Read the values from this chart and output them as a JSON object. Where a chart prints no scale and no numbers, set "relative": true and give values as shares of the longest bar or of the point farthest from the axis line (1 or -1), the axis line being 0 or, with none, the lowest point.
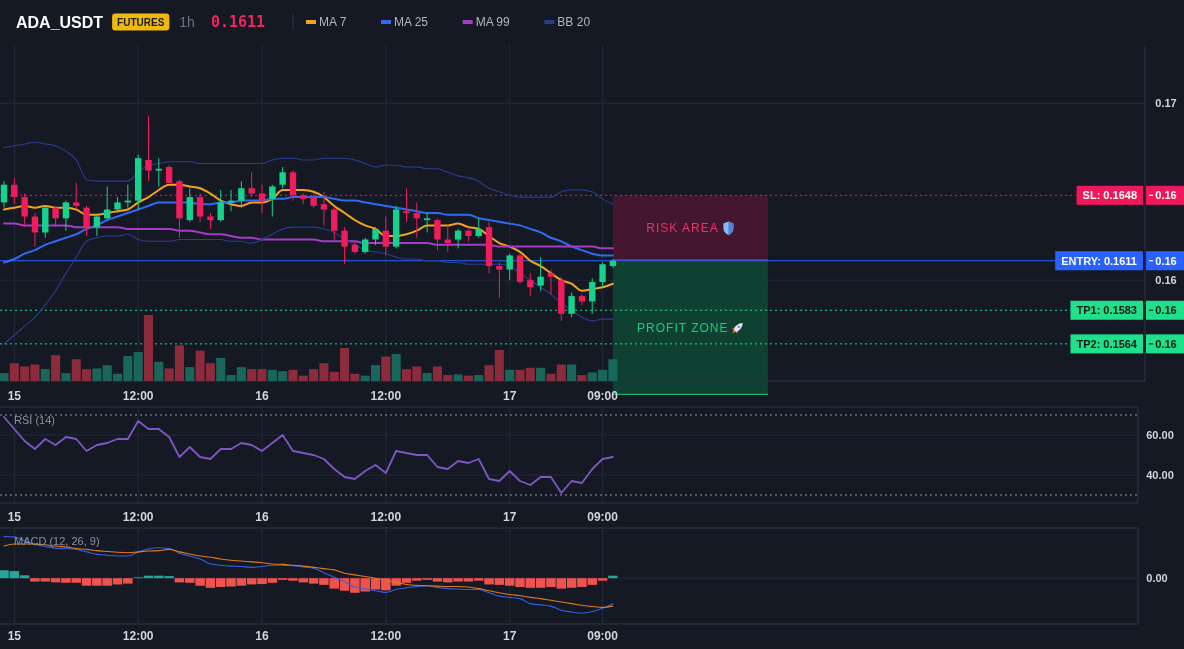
{
  "chart_data": [
    {
      "type": "candlestick",
      "title": "ADA_USDT",
      "annotations": [
        "FUTURES",
        "1h",
        "0.1611",
        "RISK AREA",
        "PROFIT ZONE"
      ],
      "categories": [
        null,
        "15",
        null,
        null,
        null,
        null,
        null,
        null,
        null,
        null,
        null,
        null,
        null,
        "12:00",
        null,
        null,
        null,
        null,
        null,
        null,
        null,
        null,
        null,
        null,
        null,
        "16",
        null,
        null,
        null,
        null,
        null,
        null,
        null,
        null,
        null,
        null,
        null,
        "12:00",
        null,
        null,
        null,
        null,
        null,
        null,
        null,
        null,
        null,
        null,
        null,
        "17",
        null,
        null,
        null,
        null,
        null,
        null,
        null,
        null,
        "09:00",
        null
      ],
      "ohlc": [
        [
          0.1644,
          0.1656,
          0.1641,
          0.1654
        ],
        [
          0.1654,
          0.1658,
          0.1643,
          0.1647
        ],
        [
          0.1647,
          0.1649,
          0.163,
          0.1636
        ],
        [
          0.1636,
          0.1638,
          0.1619,
          0.1627
        ],
        [
          0.1627,
          0.1642,
          0.1624,
          0.1641
        ],
        [
          0.1641,
          0.1642,
          0.163,
          0.1635
        ],
        [
          0.1635,
          0.1645,
          0.1628,
          0.1644
        ],
        [
          0.1644,
          0.1655,
          0.164,
          0.1642
        ],
        [
          0.1641,
          0.1642,
          0.1625,
          0.163
        ],
        [
          0.163,
          0.1637,
          0.1625,
          0.1636
        ],
        [
          0.1635,
          0.1653,
          0.1634,
          0.164
        ],
        [
          0.164,
          0.1647,
          0.1638,
          0.1644
        ],
        [
          0.1644,
          0.1654,
          0.1641,
          0.1645
        ],
        [
          0.1645,
          0.1671,
          0.164,
          0.1669
        ],
        [
          0.1668,
          0.1693,
          0.1656,
          0.1662
        ],
        [
          0.1662,
          0.1669,
          0.1653,
          0.1663
        ],
        [
          0.1664,
          0.1665,
          0.1655,
          0.1655
        ],
        [
          0.1656,
          0.1657,
          0.1624,
          0.1635
        ],
        [
          0.1634,
          0.1652,
          0.1633,
          0.1647
        ],
        [
          0.1647,
          0.1649,
          0.1633,
          0.1636
        ],
        [
          0.1636,
          0.1638,
          0.1629,
          0.1634
        ],
        [
          0.1634,
          0.1651,
          0.1633,
          0.1644
        ],
        [
          0.1644,
          0.1651,
          0.1639,
          0.1645
        ],
        [
          0.1645,
          0.1656,
          0.1641,
          0.1652
        ],
        [
          0.1652,
          0.1661,
          0.1647,
          0.1649
        ],
        [
          0.1649,
          0.1654,
          0.1638,
          0.1645
        ],
        [
          0.1646,
          0.1654,
          0.1636,
          0.1653
        ],
        [
          0.1654,
          0.1664,
          0.1652,
          0.1661
        ],
        [
          0.1661,
          0.1662,
          0.1645,
          0.1648
        ],
        [
          0.1648,
          0.1649,
          0.1643,
          0.1646
        ],
        [
          0.1647,
          0.1649,
          0.1641,
          0.1642
        ],
        [
          0.1643,
          0.165,
          0.1631,
          0.164
        ],
        [
          0.164,
          0.1641,
          0.1623,
          0.1628
        ],
        [
          0.1628,
          0.163,
          0.1609,
          0.1619
        ],
        [
          0.162,
          0.1622,
          0.1615,
          0.1616
        ],
        [
          0.1616,
          0.1624,
          0.1615,
          0.1623
        ],
        [
          0.1623,
          0.163,
          0.162,
          0.1629
        ],
        [
          0.1628,
          0.1636,
          0.1614,
          0.1619
        ],
        [
          0.1619,
          0.1642,
          0.1618,
          0.164
        ],
        [
          0.1639,
          0.1652,
          0.1633,
          0.1638
        ],
        [
          0.1638,
          0.1644,
          0.1624,
          0.1635
        ],
        [
          0.1634,
          0.1638,
          0.1627,
          0.1635
        ],
        [
          0.1634,
          0.1635,
          0.1617,
          0.1623
        ],
        [
          0.1623,
          0.1631,
          0.1616,
          0.1621
        ],
        [
          0.1623,
          0.1629,
          0.1618,
          0.1628
        ],
        [
          0.1628,
          0.1629,
          0.1622,
          0.1625
        ],
        [
          0.1625,
          0.1635,
          0.1624,
          0.1629
        ],
        [
          0.163,
          0.1633,
          0.1604,
          0.1608
        ],
        [
          0.1608,
          0.161,
          0.159,
          0.1606
        ],
        [
          0.1606,
          0.1615,
          0.16,
          0.1614
        ],
        [
          0.1614,
          0.1615,
          0.1598,
          0.1599
        ],
        [
          0.16,
          0.1604,
          0.1591,
          0.1596
        ],
        [
          0.1597,
          0.1613,
          0.1594,
          0.1602
        ],
        [
          0.1604,
          0.1606,
          0.1592,
          0.1602
        ],
        [
          0.16,
          0.1602,
          0.1577,
          0.1581
        ],
        [
          0.1581,
          0.1593,
          0.1579,
          0.1591
        ],
        [
          0.1591,
          0.1592,
          0.1586,
          0.1588
        ],
        [
          0.1588,
          0.1601,
          0.1581,
          0.1599
        ],
        [
          0.1599,
          0.161,
          0.1596,
          0.1609
        ],
        [
          0.1608,
          0.1612,
          0.1607,
          0.1611
        ]
      ],
      "colors": [
        "#15d38c",
        "#f01c5c",
        "#f01c5c",
        "#f01c5c",
        "#15d38c",
        "#f01c5c",
        "#15d38c",
        "#f01c5c",
        "#f01c5c",
        "#15d38c",
        "#15d38c",
        "#15d38c",
        "#15d38c",
        "#15d38c",
        "#f01c5c",
        "#15d38c",
        "#f01c5c",
        "#f01c5c",
        "#15d38c",
        "#f01c5c",
        "#f01c5c",
        "#15d38c",
        "#15d38c",
        "#15d38c",
        "#f01c5c",
        "#f01c5c",
        "#15d38c",
        "#15d38c",
        "#f01c5c",
        "#f01c5c",
        "#f01c5c",
        "#f01c5c",
        "#f01c5c",
        "#f01c5c",
        "#f01c5c",
        "#15d38c",
        "#15d38c",
        "#f01c5c",
        "#15d38c",
        "#f01c5c",
        "#f01c5c",
        "#15d38c",
        "#f01c5c",
        "#f01c5c",
        "#15d38c",
        "#f01c5c",
        "#15d38c",
        "#f01c5c",
        "#f01c5c",
        "#15d38c",
        "#f01c5c",
        "#f01c5c",
        "#15d38c",
        "#f01c5c",
        "#f01c5c",
        "#15d38c",
        "#f01c5c",
        "#15d38c",
        "#15d38c",
        "#15d38c"
      ],
      "series": [
        {
          "name": "MA 7",
          "type": "line",
          "color": "#f5a31a",
          "values": [
            0.164,
            0.1641,
            0.1642,
            0.1641,
            0.1642,
            0.1641,
            0.1641,
            0.164,
            0.1637,
            0.1637,
            0.1638,
            0.1639,
            0.164,
            0.1644,
            0.1647,
            0.1651,
            0.1654,
            0.1654,
            0.1653,
            0.1652,
            0.1649,
            0.1645,
            0.1643,
            0.1642,
            0.1644,
            0.1644,
            0.1646,
            0.1651,
            0.1651,
            0.1651,
            0.165,
            0.1647,
            0.1642,
            0.1638,
            0.1634,
            0.1631,
            0.1629,
            0.1625,
            0.1625,
            0.1626,
            0.1628,
            0.1631,
            0.1631,
            0.1631,
            0.1632,
            0.163,
            0.1629,
            0.1625,
            0.1621,
            0.1619,
            0.1616,
            0.1611,
            0.1608,
            0.1604,
            0.16,
            0.1598,
            0.1594,
            0.1595,
            0.1596,
            0.1598
          ]
        },
        {
          "name": "MA 25",
          "type": "line",
          "color": "#2f6bf0",
          "values": [
            0.161,
            0.1612,
            0.1615,
            0.1617,
            0.162,
            0.1622,
            0.1624,
            0.1626,
            0.1629,
            0.1631,
            0.1634,
            0.1636,
            0.1638,
            0.164,
            0.1642,
            0.1644,
            0.1644,
            0.1644,
            0.1644,
            0.1643,
            0.1643,
            0.1644,
            0.1644,
            0.1645,
            0.1645,
            0.1645,
            0.1646,
            0.1646,
            0.1647,
            0.1647,
            0.1647,
            0.1647,
            0.1646,
            0.1645,
            0.1645,
            0.1644,
            0.1643,
            0.1642,
            0.1641,
            0.164,
            0.1639,
            0.1638,
            0.1638,
            0.1637,
            0.1637,
            0.1637,
            0.1635,
            0.1634,
            0.1633,
            0.1632,
            0.1631,
            0.1629,
            0.1627,
            0.1624,
            0.1622,
            0.1619,
            0.1617,
            0.1615,
            0.1614,
            0.1614
          ]
        },
        {
          "name": "MA 99",
          "type": "line",
          "color": "#a43cc4",
          "values": [
            0.1632,
            0.1632,
            0.1631,
            0.1631,
            0.1631,
            0.1631,
            0.1631,
            0.163,
            0.163,
            0.163,
            0.163,
            0.163,
            0.1629,
            0.1629,
            0.1629,
            0.1629,
            0.1629,
            0.1628,
            0.1628,
            0.1627,
            0.1626,
            0.1626,
            0.1625,
            0.1624,
            0.1624,
            0.1623,
            0.1623,
            0.1623,
            0.1623,
            0.1623,
            0.1623,
            0.1622,
            0.1622,
            0.1622,
            0.1622,
            0.1621,
            0.1621,
            0.1621,
            0.1621,
            0.1621,
            0.1621,
            0.1621,
            0.162,
            0.162,
            0.162,
            0.162,
            0.162,
            0.162,
            0.1619,
            0.1619,
            0.1619,
            0.1619,
            0.1619,
            0.1619,
            0.1619,
            0.1619,
            0.1619,
            0.1619,
            0.1618,
            0.1618
          ]
        },
        {
          "name": "BB 20",
          "type": "line",
          "color": "#2a3d8f",
          "values": [
            0.1675,
            0.1676,
            0.1677,
            0.1678,
            0.1677,
            0.1676,
            0.1673,
            0.1668,
            0.1657,
            0.1656,
            0.1656,
            0.1656,
            0.1656,
            0.1661,
            0.1665,
            0.1666,
            0.1667,
            0.1667,
            0.1667,
            0.1666,
            0.1666,
            0.1666,
            0.1666,
            0.1666,
            0.1666,
            0.1666,
            0.1668,
            0.1669,
            0.1669,
            0.1668,
            0.1668,
            0.1669,
            0.1669,
            0.1669,
            0.1668,
            0.1666,
            0.1664,
            0.1665,
            0.1665,
            0.1664,
            0.1664,
            0.1663,
            0.1663,
            0.1661,
            0.1659,
            0.1658,
            0.1656,
            0.1652,
            0.165,
            0.1648,
            0.1647,
            0.1647,
            0.1647,
            0.1647,
            0.165,
            0.1651,
            0.1651,
            0.165,
            0.1646,
            0.1643
          ]
        },
        {
          "type": "line",
          "color": "#2a3d8f",
          "values": [
            0.1564,
            0.1569,
            0.1574,
            0.1579,
            0.1586,
            0.1594,
            0.1604,
            0.1613,
            0.1622,
            0.1624,
            0.1625,
            0.1625,
            0.1626,
            0.1623,
            0.1622,
            0.1622,
            0.1622,
            0.1623,
            0.1623,
            0.1623,
            0.1623,
            0.1623,
            0.1622,
            0.1622,
            0.1621,
            0.1623,
            0.1626,
            0.1629,
            0.163,
            0.163,
            0.163,
            0.1629,
            0.1627,
            0.1623,
            0.162,
            0.1617,
            0.1616,
            0.1615,
            0.1613,
            0.1612,
            0.1612,
            0.1611,
            0.1611,
            0.161,
            0.161,
            0.1609,
            0.1609,
            0.1609,
            0.1609,
            0.1608,
            0.1604,
            0.16,
            0.1596,
            0.1592,
            0.1587,
            0.1583,
            0.1579,
            0.1577,
            0.1578,
            0.1578
          ]
        }
      ],
      "ylim": [
        0.1543,
        0.1733
      ],
      "yticks": [
        0.17,
        0.16,
        {
          "value": 0.1648,
          "label": "0.16"
        },
        {
          "value": 0.1611,
          "label": "0.16"
        },
        {
          "value": 0.1583,
          "label": "0.16"
        },
        {
          "value": 0.1564,
          "label": "0.16"
        }
      ],
      "ref_lines": [
        {
          "axis": "y",
          "value": 0.1648,
          "label": "SL: 0.1648",
          "color": "#f0185a",
          "line_style": "dotted"
        },
        {
          "axis": "y",
          "value": 0.1611,
          "label": "ENTRY: 0.1611",
          "color": "#2962ff",
          "line_style": "solid"
        },
        {
          "axis": "y",
          "value": 0.1583,
          "label": "TP1: 0.1583",
          "color": "#1fe08b",
          "line_style": "dotted"
        },
        {
          "axis": "y",
          "value": 0.1564,
          "label": "TP2: 0.1564",
          "color": "#1fe08b",
          "line_style": "dotted"
        }
      ],
      "grid": true,
      "legend": "top right"
    },
    {
      "type": "bar",
      "relative": true,
      "categories": [
        null,
        null,
        null,
        null,
        null,
        null,
        null,
        null,
        null,
        null,
        null,
        null,
        null,
        null,
        null,
        null,
        null,
        null,
        null,
        null,
        null,
        null,
        null,
        null,
        null,
        null,
        null,
        null,
        null,
        null,
        null,
        null,
        null,
        null,
        null,
        null,
        null,
        null,
        null,
        null,
        null,
        null,
        null,
        null,
        null,
        null,
        null,
        null,
        null,
        null,
        null,
        null,
        null,
        null,
        null,
        null,
        null,
        null,
        null,
        null
      ],
      "values": [
        0.12,
        0.27,
        0.22,
        0.25,
        0.18,
        0.39,
        0.12,
        0.33,
        0.18,
        0.19,
        0.24,
        0.11,
        0.38,
        0.44,
        1,
        0.29,
        0.19,
        0.54,
        0.21,
        0.46,
        0.27,
        0.35,
        0.09,
        0.21,
        0.18,
        0.18,
        0.17,
        0.15,
        0.17,
        0.08,
        0.18,
        0.27,
        0.14,
        0.5,
        0.11,
        0.08,
        0.24,
        0.37,
        0.41,
        0.18,
        0.22,
        0.12,
        0.22,
        0.09,
        0.1,
        0.08,
        0.09,
        0.24,
        0.47,
        0.17,
        0.17,
        0.2,
        0.2,
        0.11,
        0.25,
        0.25,
        0.09,
        0.13,
        0.17,
        0.33
      ],
      "colors": [
        "#19675a",
        "#8b2b3c",
        "#8b2b3c",
        "#8b2b3c",
        "#19675a",
        "#8b2b3c",
        "#19675a",
        "#8b2b3c",
        "#8b2b3c",
        "#19675a",
        "#19675a",
        "#19675a",
        "#19675a",
        "#19675a",
        "#8b2b3c",
        "#19675a",
        "#8b2b3c",
        "#8b2b3c",
        "#19675a",
        "#8b2b3c",
        "#8b2b3c",
        "#19675a",
        "#19675a",
        "#19675a",
        "#8b2b3c",
        "#8b2b3c",
        "#19675a",
        "#19675a",
        "#8b2b3c",
        "#8b2b3c",
        "#8b2b3c",
        "#8b2b3c",
        "#8b2b3c",
        "#8b2b3c",
        "#8b2b3c",
        "#19675a",
        "#19675a",
        "#8b2b3c",
        "#19675a",
        "#8b2b3c",
        "#8b2b3c",
        "#19675a",
        "#8b2b3c",
        "#8b2b3c",
        "#19675a",
        "#8b2b3c",
        "#19675a",
        "#8b2b3c",
        "#8b2b3c",
        "#19675a",
        "#8b2b3c",
        "#8b2b3c",
        "#19675a",
        "#8b2b3c",
        "#8b2b3c",
        "#19675a",
        "#8b2b3c",
        "#19675a",
        "#19675a",
        "#19675a"
      ]
    },
    {
      "type": "line",
      "title": "RSI (14)",
      "categories": [
        null,
        "15",
        null,
        null,
        null,
        null,
        null,
        null,
        null,
        null,
        null,
        null,
        null,
        "12:00",
        null,
        null,
        null,
        null,
        null,
        null,
        null,
        null,
        null,
        null,
        null,
        "16",
        null,
        null,
        null,
        null,
        null,
        null,
        null,
        null,
        null,
        null,
        null,
        "12:00",
        null,
        null,
        null,
        null,
        null,
        null,
        null,
        null,
        null,
        null,
        null,
        "17",
        null,
        null,
        null,
        null,
        null,
        null,
        null,
        null,
        "09:00",
        null
      ],
      "series": [
        {
          "color": "#7e57c2",
          "values": [
            69,
            63,
            57,
            53,
            58,
            55,
            59,
            58,
            52,
            55,
            56,
            58,
            58,
            67,
            63,
            63,
            59,
            49,
            54,
            49,
            48,
            53,
            53,
            56,
            55,
            52,
            56,
            60,
            52,
            51,
            50,
            48,
            43,
            39,
            38,
            42,
            45,
            41,
            52,
            51,
            50,
            50,
            44,
            43,
            47,
            46,
            48,
            38,
            37,
            42,
            37,
            35,
            39,
            39,
            31,
            37,
            36,
            43,
            48,
            49
          ]
        }
      ],
      "ylim": [
        26,
        74
      ],
      "yticks": [
        {
          "value": 60,
          "label": "60.00"
        },
        {
          "value": 40,
          "label": "40.00"
        }
      ],
      "ref_lines": [
        {
          "axis": "y",
          "value": 70,
          "color": "#9598a1",
          "line_style": "dotted"
        },
        {
          "axis": "y",
          "value": 30,
          "color": "#9598a1",
          "line_style": "dotted"
        }
      ],
      "grid": true
    },
    {
      "type": "line",
      "title": "MACD (12, 26, 9)",
      "relative": true,
      "annotations": [
        "0.00"
      ],
      "categories": [
        null,
        "15",
        null,
        null,
        null,
        null,
        null,
        null,
        null,
        null,
        null,
        null,
        null,
        "12:00",
        null,
        null,
        null,
        null,
        null,
        null,
        null,
        null,
        null,
        null,
        null,
        "16",
        null,
        null,
        null,
        null,
        null,
        null,
        null,
        null,
        null,
        null,
        null,
        "12:00",
        null,
        null,
        null,
        null,
        null,
        null,
        null,
        null,
        null,
        null,
        null,
        "17",
        null,
        null,
        null,
        null,
        null,
        null,
        null,
        null,
        "09:00",
        null
      ],
      "series": [
        {
          "type": "bar",
          "values": [
            0.19,
            0.17,
            0.07,
            -0.08,
            -0.08,
            -0.1,
            -0.11,
            -0.11,
            -0.18,
            -0.18,
            -0.18,
            -0.15,
            -0.13,
            0.02,
            0.06,
            0.06,
            0.05,
            -0.1,
            -0.11,
            -0.18,
            -0.23,
            -0.21,
            -0.2,
            -0.18,
            -0.15,
            -0.14,
            -0.11,
            -0.04,
            -0.06,
            -0.1,
            -0.13,
            -0.16,
            -0.25,
            -0.3,
            -0.35,
            -0.32,
            -0.27,
            -0.29,
            -0.18,
            -0.11,
            -0.06,
            -0.04,
            -0.08,
            -0.1,
            -0.08,
            -0.08,
            -0.06,
            -0.15,
            -0.16,
            -0.18,
            -0.21,
            -0.23,
            -0.23,
            -0.21,
            -0.25,
            -0.23,
            -0.21,
            -0.16,
            -0.06,
            0.06
          ],
          "colors": [
            "#26a69a",
            "#26a69a",
            "#26a69a",
            "#ef5350",
            "#ef5350",
            "#ef5350",
            "#ef5350",
            "#ef5350",
            "#ef5350",
            "#ef5350",
            "#ef5350",
            "#ef5350",
            "#ef5350",
            "#26a69a",
            "#26a69a",
            "#26a69a",
            "#26a69a",
            "#ef5350",
            "#ef5350",
            "#ef5350",
            "#ef5350",
            "#ef5350",
            "#ef5350",
            "#ef5350",
            "#ef5350",
            "#ef5350",
            "#ef5350",
            "#ef5350",
            "#ef5350",
            "#ef5350",
            "#ef5350",
            "#ef5350",
            "#ef5350",
            "#ef5350",
            "#ef5350",
            "#ef5350",
            "#ef5350",
            "#ef5350",
            "#ef5350",
            "#ef5350",
            "#ef5350",
            "#ef5350",
            "#ef5350",
            "#ef5350",
            "#ef5350",
            "#ef5350",
            "#ef5350",
            "#ef5350",
            "#ef5350",
            "#ef5350",
            "#ef5350",
            "#ef5350",
            "#ef5350",
            "#ef5350",
            "#ef5350",
            "#ef5350",
            "#ef5350",
            "#ef5350",
            "#ef5350",
            "#26a69a"
          ]
        },
        {
          "color": "#3461e6",
          "values": [
            1,
            0.99,
            0.9,
            0.81,
            0.76,
            0.72,
            0.71,
            0.69,
            0.63,
            0.57,
            0.55,
            0.53,
            0.53,
            0.63,
            0.7,
            0.73,
            0.71,
            0.6,
            0.53,
            0.46,
            0.34,
            0.31,
            0.29,
            0.28,
            0.26,
            0.28,
            0.31,
            0.31,
            0.3,
            0.27,
            0.24,
            0.13,
            0.02,
            -0.08,
            -0.21,
            -0.26,
            -0.3,
            -0.34,
            -0.27,
            -0.23,
            -0.2,
            -0.18,
            -0.22,
            -0.25,
            -0.26,
            -0.27,
            -0.27,
            -0.35,
            -0.43,
            -0.46,
            -0.49,
            -0.61,
            -0.64,
            -0.67,
            -0.77,
            -0.81,
            -0.84,
            -0.8,
            -0.72,
            -0.61
          ]
        },
        {
          "color": "#e07b1a",
          "values": [
            0.77,
            0.82,
            0.82,
            0.82,
            0.8,
            0.77,
            0.75,
            0.71,
            0.69,
            0.66,
            0.64,
            0.62,
            0.61,
            0.63,
            0.65,
            0.66,
            0.69,
            0.63,
            0.58,
            0.53,
            0.5,
            0.46,
            0.43,
            0.41,
            0.39,
            0.37,
            0.34,
            0.33,
            0.31,
            0.29,
            0.26,
            0.23,
            0.2,
            0.12,
            0.08,
            0.04,
            0,
            -0.05,
            -0.1,
            -0.15,
            -0.17,
            -0.18,
            -0.19,
            -0.2,
            -0.2,
            -0.21,
            -0.25,
            -0.3,
            -0.35,
            -0.39,
            -0.42,
            -0.46,
            -0.49,
            -0.53,
            -0.57,
            -0.61,
            -0.65,
            -0.68,
            -0.7,
            -0.67
          ]
        }
      ],
      "grid": "x"
    }
  ]
}
